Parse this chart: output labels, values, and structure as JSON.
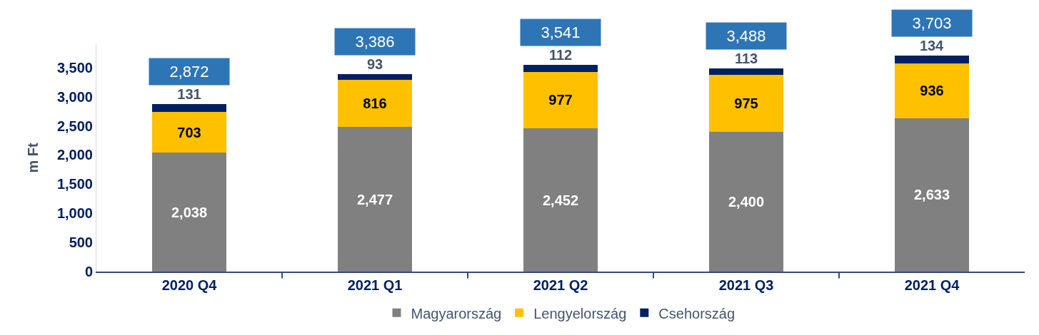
{
  "chart_data": {
    "type": "bar",
    "stacked": true,
    "ylabel": "m Ft",
    "categories": [
      "2020 Q4",
      "2021 Q1",
      "2021 Q2",
      "2021 Q3",
      "2021 Q4"
    ],
    "series": [
      {
        "name": "Magyarország",
        "color": "#808080",
        "values": [
          2038,
          2477,
          2452,
          2400,
          2633
        ],
        "value_labels": [
          "2,038",
          "2,477",
          "2,452",
          "2,400",
          "2,633"
        ]
      },
      {
        "name": "Lengyelország",
        "color": "#ffc000",
        "values": [
          703,
          816,
          977,
          975,
          936
        ],
        "value_labels": [
          "703",
          "816",
          "977",
          "975",
          "936"
        ]
      },
      {
        "name": "Csehország",
        "color": "#002060",
        "values": [
          131,
          93,
          112,
          113,
          134
        ],
        "value_labels": [
          "131",
          "93",
          "112",
          "113",
          "134"
        ]
      }
    ],
    "totals": [
      "2,872",
      "3,386",
      "3,541",
      "3,488",
      "3,703"
    ],
    "ylim": [
      0,
      3900
    ],
    "yticks": [
      0,
      500,
      {
        "value": 1000,
        "label": "1,000"
      },
      {
        "value": 1500,
        "label": "1,500"
      },
      {
        "value": 2000,
        "label": "2,000"
      },
      {
        "value": 2500,
        "label": "2,500"
      },
      {
        "value": 3000,
        "label": "3,000"
      },
      {
        "value": 3500,
        "label": "3,500"
      }
    ],
    "grid": false,
    "legend": "bottom"
  }
}
